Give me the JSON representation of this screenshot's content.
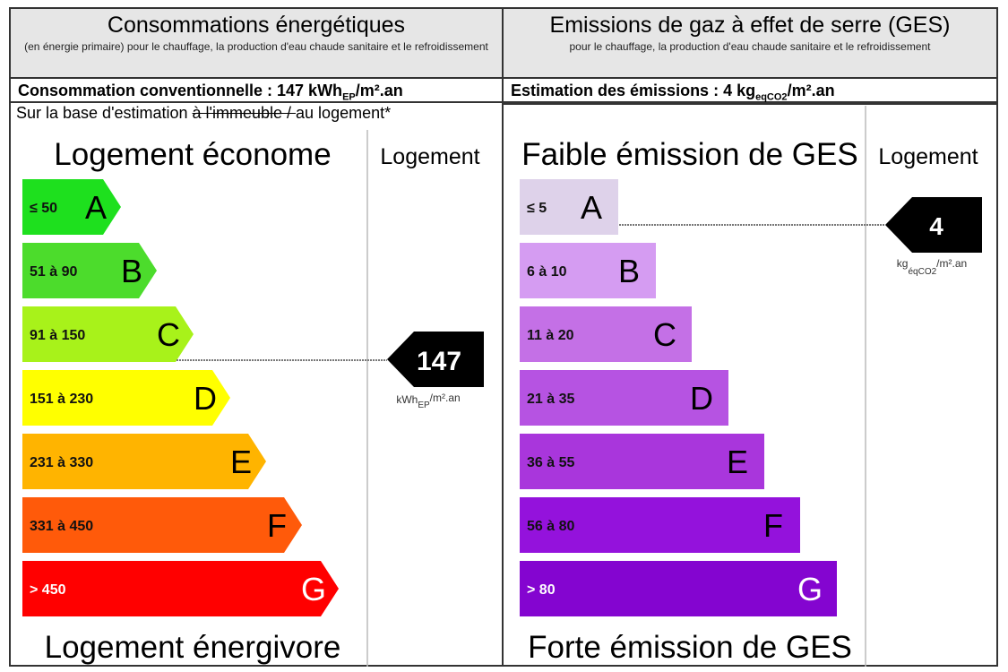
{
  "energy": {
    "title": "Consommations énergétiques",
    "subtitle": "(en énergie primaire) pour le chauffage, la production d'eau chaude sanitaire et le refroidissement",
    "summary_prefix": "Consommation conventionnelle : 147 kWh",
    "summary_sub": "EP",
    "summary_suffix": "/m².an",
    "base_prefix": "Sur la base d'estimation ",
    "base_struck": "à l'immeuble / ",
    "base_suffix": "au logement*",
    "top_label": "Logement économe",
    "bottom_label": "Logement énergivore",
    "column_label": "Logement",
    "marker_value": "147",
    "unit_main": "kWh",
    "unit_sub": "EP",
    "unit_suffix": "/m².an"
  },
  "ges": {
    "title": "Emissions de gaz à effet de serre (GES)",
    "subtitle": "pour le chauffage, la production d'eau chaude sanitaire et le refroidissement",
    "summary_prefix": "Estimation des émissions : 4 kg",
    "summary_sub": "eqCO2",
    "summary_suffix": "/m².an",
    "top_label": "Faible émission de GES",
    "bottom_label": "Forte émission de GES",
    "column_label": "Logement",
    "marker_value": "4",
    "unit_main": "kg",
    "unit_sub": "éqCO2",
    "unit_suffix": "/m².an"
  },
  "chart_data": [
    {
      "type": "bar",
      "categories": [
        "A",
        "B",
        "C",
        "D",
        "E",
        "F",
        "G"
      ],
      "ranges": [
        "≤ 50",
        "51 à 90",
        "91 à 150",
        "151 à 230",
        "231 à 330",
        "331 à 450",
        "> 450"
      ],
      "colors": [
        "#1ee01e",
        "#4cdc2c",
        "#a8f21a",
        "#ffff00",
        "#ffb400",
        "#ff5a0a",
        "#ff0000"
      ],
      "value": 147,
      "class": "C",
      "shape": "arrow"
    },
    {
      "type": "bar",
      "categories": [
        "A",
        "B",
        "C",
        "D",
        "E",
        "F",
        "G"
      ],
      "ranges": [
        "≤ 5",
        "6 à 10",
        "11 à 20",
        "21 à 35",
        "36 à 55",
        "56 à 80",
        "> 80"
      ],
      "colors": [
        "#ded2ea",
        "#d59cf2",
        "#c470e6",
        "#b653e2",
        "#a936dc",
        "#9412dc",
        "#8405d0"
      ],
      "value": 4,
      "class": "A",
      "shape": "rect"
    }
  ]
}
